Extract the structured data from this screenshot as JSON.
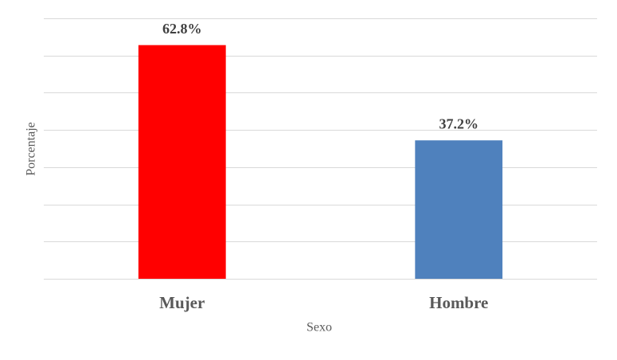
{
  "chart_data": {
    "type": "bar",
    "x_label": "Sexo",
    "y_label": "Porcentaje",
    "categories": [
      "Mujer",
      "Hombre"
    ],
    "values": [
      62.8,
      37.2
    ],
    "value_labels": [
      "62.8%",
      "37.2%"
    ],
    "colors": [
      "#ff0000",
      "#4f81bd"
    ],
    "ylim": [
      0,
      70
    ],
    "yticks": [
      0,
      10,
      20,
      30,
      40,
      50,
      60,
      70
    ],
    "grid": true
  }
}
